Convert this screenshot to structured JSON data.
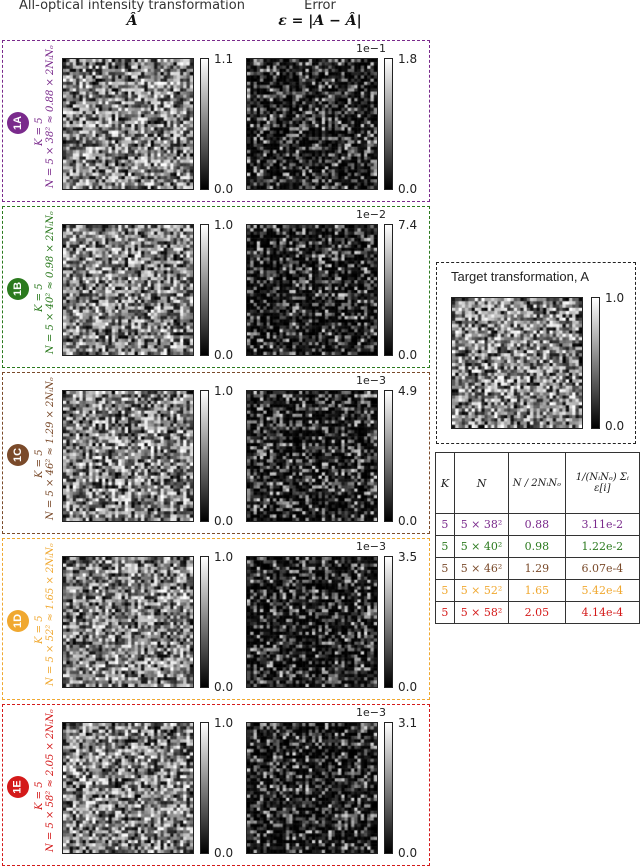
{
  "headers": {
    "col1_title": "All-optical intensity transformation",
    "col1_symbol": "Â",
    "col2_title": "Error",
    "col2_symbol": "ε = |A − Â|"
  },
  "rows": [
    {
      "badge": "1A",
      "color": "#7a2a8c",
      "k_label": "K = 5",
      "n_label": "N = 5 × 38² ≈ 0.88 × 2NᵢNₒ",
      "a_max": "1.1",
      "a_min": "0.0",
      "e_exp": "1e−1",
      "e_max": "1.8",
      "e_min": "0.0"
    },
    {
      "badge": "1B",
      "color": "#2b7a1e",
      "k_label": "K = 5",
      "n_label": "N = 5 × 40² ≈ 0.98 × 2NᵢNₒ",
      "a_max": "1.0",
      "a_min": "0.0",
      "e_exp": "1e−2",
      "e_max": "7.4",
      "e_min": "0.0"
    },
    {
      "badge": "1C",
      "color": "#7a4a2a",
      "k_label": "K = 5",
      "n_label": "N = 5 × 46² ≈ 1.29 × 2NᵢNₒ",
      "a_max": "1.0",
      "a_min": "0.0",
      "e_exp": "1e−3",
      "e_max": "4.9",
      "e_min": "0.0"
    },
    {
      "badge": "1D",
      "color": "#f0a830",
      "k_label": "K = 5",
      "n_label": "N = 5 × 52² ≈ 1.65 × 2NᵢNₒ",
      "a_max": "1.0",
      "a_min": "0.0",
      "e_exp": "1e−3",
      "e_max": "3.5",
      "e_min": "0.0"
    },
    {
      "badge": "1E",
      "color": "#d41a1a",
      "k_label": "K = 5",
      "n_label": "N = 5 × 58² ≈ 2.05 × 2NᵢNₒ",
      "a_max": "1.0",
      "a_min": "0.0",
      "e_exp": "1e−3",
      "e_max": "3.1",
      "e_min": "0.0"
    }
  ],
  "target": {
    "title": "Target transformation, A",
    "max": "1.0",
    "min": "0.0"
  },
  "table": {
    "headers": [
      "K",
      "N",
      "N / 2NᵢNₒ",
      "1/(NᵢNₒ) Σᵢ ε[i]"
    ],
    "rows": [
      {
        "k": "5",
        "n": "5 × 38²",
        "ratio": "0.88",
        "err": "3.11e-2",
        "color": "#7a2a8c"
      },
      {
        "k": "5",
        "n": "5 × 40²",
        "ratio": "0.98",
        "err": "1.22e-2",
        "color": "#2b7a1e"
      },
      {
        "k": "5",
        "n": "5 × 46²",
        "ratio": "1.29",
        "err": "6.07e-4",
        "color": "#7a4a2a"
      },
      {
        "k": "5",
        "n": "5 × 52²",
        "ratio": "1.65",
        "err": "5.42e-4",
        "color": "#f0a830"
      },
      {
        "k": "5",
        "n": "5 × 58²",
        "ratio": "2.05",
        "err": "4.14e-4",
        "color": "#d41a1a"
      }
    ]
  }
}
